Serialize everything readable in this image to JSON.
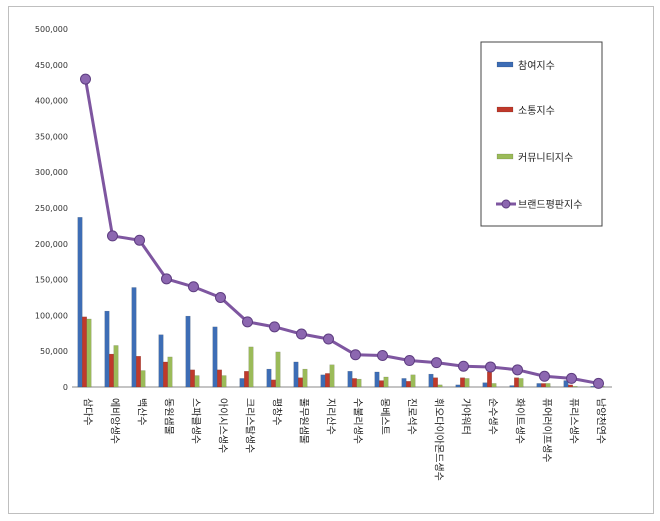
{
  "chart_data": {
    "type": "bar",
    "categories": [
      "삼다수",
      "에비앙생수",
      "백산수",
      "동원샘물",
      "스파클생수",
      "아이시스생수",
      "크리스탈생수",
      "평창수",
      "풀무원샘물",
      "지리산수",
      "수불리생수",
      "몽베스트",
      "진로석수",
      "휘오다이아몬드생수",
      "가야워터",
      "순수생수",
      "화이트생수",
      "퓨어러이프생수",
      "퓨리스생수",
      "남양천연수"
    ],
    "series": [
      {
        "name": "참여지수",
        "kind": "bar",
        "color": "#3d6db5",
        "values": [
          237000,
          106000,
          139000,
          73000,
          99000,
          84000,
          12000,
          25000,
          35000,
          17000,
          22000,
          21000,
          12000,
          18000,
          3000,
          6000,
          2000,
          5000,
          9000,
          1000
        ]
      },
      {
        "name": "소통지수",
        "kind": "bar",
        "color": "#c0392b",
        "values": [
          98000,
          46000,
          43000,
          35000,
          24000,
          24000,
          22000,
          10000,
          13000,
          19000,
          12000,
          9000,
          8000,
          13000,
          13000,
          21000,
          13000,
          5000,
          3000,
          1000
        ]
      },
      {
        "name": "커뮤니티지수",
        "kind": "bar",
        "color": "#9bbb59",
        "values": [
          95000,
          58000,
          23000,
          42000,
          16000,
          16000,
          56000,
          49000,
          25000,
          31000,
          11000,
          14000,
          17000,
          3000,
          12000,
          5000,
          12000,
          5000,
          1000,
          1000
        ]
      },
      {
        "name": "브랜드평판지수",
        "kind": "line",
        "color": "#7e56a0",
        "values": [
          430000,
          211000,
          205000,
          151000,
          140000,
          125000,
          91000,
          84000,
          74000,
          67000,
          45000,
          44000,
          37000,
          34000,
          29000,
          28000,
          24000,
          15000,
          12000,
          5000
        ]
      }
    ],
    "yticks": [
      "0",
      "50,000",
      "100,000",
      "150,000",
      "200,000",
      "250,000",
      "300,000",
      "350,000",
      "400,000",
      "450,000",
      "500,000"
    ],
    "ylim": [
      0,
      500000
    ],
    "grid": false,
    "legend": "top-right"
  }
}
